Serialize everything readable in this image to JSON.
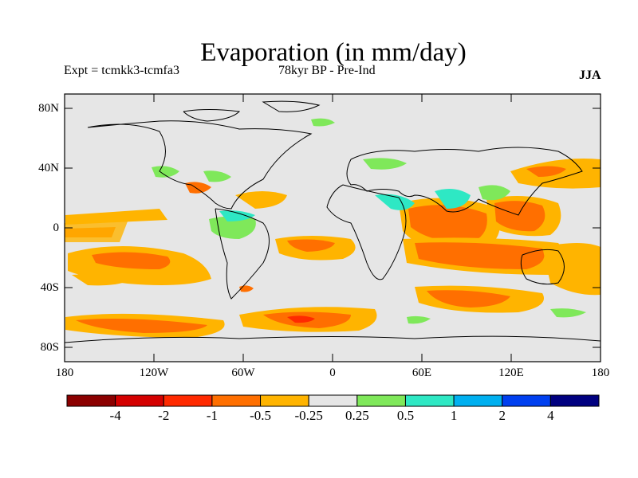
{
  "title": "Evaporation (in mm/day)",
  "experiment": "Expt = tcmkk3-tcmfa3",
  "period": "78kyr BP - Pre-Ind",
  "season": "JJA",
  "lat_labels": [
    "80N",
    "40N",
    "0",
    "40S",
    "80S"
  ],
  "lon_labels": [
    "180",
    "120W",
    "60W",
    "0",
    "60E",
    "120E",
    "180"
  ],
  "colorbar": {
    "labels": [
      "-4",
      "-2",
      "-1",
      "-0.5",
      "-0.25",
      "0.25",
      "0.5",
      "1",
      "2",
      "4"
    ],
    "colors": [
      "#8b0000",
      "#d40000",
      "#ff2a00",
      "#ff6f00",
      "#ffb400",
      "#e6e6e6",
      "#7fe85a",
      "#2ee8c4",
      "#00b0f0",
      "#0040f0",
      "#000080"
    ]
  }
}
